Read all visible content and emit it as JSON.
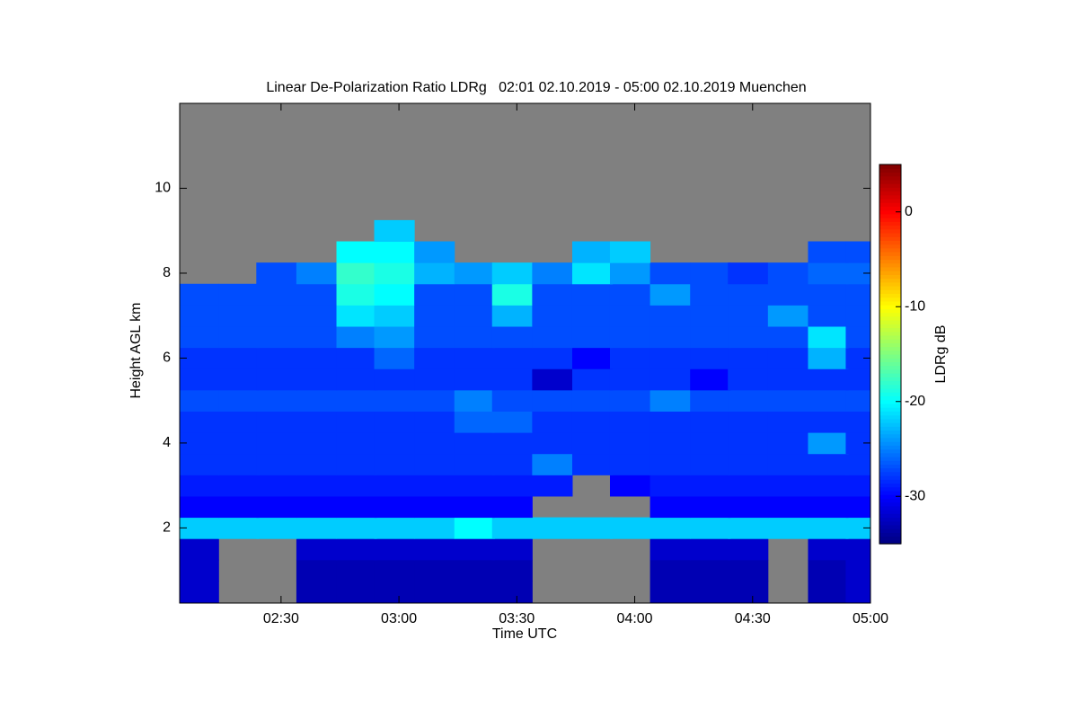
{
  "chart_data": {
    "type": "heatmap",
    "title": "Linear De-Polarization Ratio LDRg   02:01 02.10.2019 - 05:00 02.10.2019 Muenchen",
    "x_label": "Time UTC",
    "y_label": "Height AGL km",
    "colorbar_label": "LDRg dB",
    "xlim": [
      2.07,
      5.0
    ],
    "xticks": [
      {
        "value": 2.5,
        "label": "02:30"
      },
      {
        "value": 3,
        "label": "03:00"
      },
      {
        "value": 3.5,
        "label": "03:30"
      },
      {
        "value": 4,
        "label": "04:00"
      },
      {
        "value": 4.5,
        "label": "04:30"
      },
      {
        "value": 5,
        "label": "05:00"
      }
    ],
    "ylim": [
      0.23,
      12
    ],
    "yticks": [
      2,
      4,
      6,
      8,
      10
    ],
    "zlim": [
      -35,
      5
    ],
    "zticks": [
      0,
      -10,
      -20,
      -30
    ],
    "colormap": "jet",
    "missing_color": "#808080",
    "x": [
      2.15,
      2.32,
      2.48,
      2.65,
      2.82,
      2.98,
      3.15,
      3.32,
      3.48,
      3.65,
      3.82,
      3.98,
      4.15,
      4.32,
      4.48,
      4.65,
      4.82,
      4.98
    ],
    "y": [
      0.5,
      1.0,
      1.5,
      2.0,
      2.5,
      3.0,
      3.5,
      4.0,
      4.5,
      5.0,
      5.5,
      6.0,
      6.5,
      7.0,
      7.5,
      8.0,
      8.5,
      9.0
    ],
    "z": [
      [
        -32,
        null,
        null,
        -33,
        -33,
        -33,
        -33,
        -33,
        -33,
        null,
        null,
        null,
        -33,
        -33,
        -33,
        null,
        -33,
        -32
      ],
      [
        -32,
        null,
        null,
        -33,
        -33,
        -33,
        -33,
        -33,
        -33,
        null,
        null,
        null,
        -33,
        -33,
        -33,
        null,
        -33,
        -32
      ],
      [
        -32,
        null,
        null,
        -32,
        -32,
        -32,
        -32,
        -32,
        -32,
        null,
        null,
        null,
        -32,
        -32,
        -32,
        null,
        -32,
        -32
      ],
      [
        -22,
        -22,
        -22,
        -22,
        -22,
        -22,
        -22,
        -20,
        -22,
        -22,
        -22,
        -22,
        -22,
        -22,
        -22,
        -22,
        -22,
        -22
      ],
      [
        -30,
        -30,
        -30,
        -30,
        -30,
        -30,
        -30,
        -30,
        -30,
        null,
        null,
        null,
        -30,
        -30,
        -30,
        -30,
        -30,
        -30
      ],
      [
        -29,
        -29,
        -29,
        -29,
        -29,
        -29,
        -29,
        -29,
        -29,
        -29,
        null,
        -30,
        -29,
        -29,
        -29,
        -29,
        -29,
        -29
      ],
      [
        -28,
        -28,
        -28,
        -28,
        -28,
        -28,
        -28,
        -28,
        -28,
        -25,
        -28,
        -28,
        -28,
        -28,
        -28,
        -28,
        -28,
        -28
      ],
      [
        -28,
        -28,
        -28,
        -28,
        -28,
        -28,
        -28,
        -28,
        -28,
        -28,
        -28,
        -28,
        -28,
        -28,
        -28,
        -28,
        -24,
        -28
      ],
      [
        -28,
        -28,
        -28,
        -28,
        -28,
        -28,
        -28,
        -26,
        -26,
        -28,
        -28,
        -28,
        -28,
        -28,
        -28,
        -28,
        -28,
        -28
      ],
      [
        -27,
        -27,
        -27,
        -27,
        -27,
        -27,
        -27,
        -25,
        -27,
        -27,
        -27,
        -27,
        -25,
        -27,
        -27,
        -27,
        -27,
        -27
      ],
      [
        -28,
        -28,
        -28,
        -28,
        -28,
        -28,
        -28,
        -28,
        -28,
        -32,
        -28,
        -28,
        -28,
        -30,
        -28,
        -28,
        -28,
        -28
      ],
      [
        -28,
        -28,
        -28,
        -28,
        -28,
        -26,
        -28,
        -28,
        -28,
        -28,
        -30,
        -28,
        -28,
        -28,
        -28,
        -28,
        -23,
        -28
      ],
      [
        -27,
        -27,
        -27,
        -27,
        -25,
        -24,
        -27,
        -27,
        -27,
        -27,
        -27,
        -27,
        -27,
        -27,
        -27,
        -27,
        -21,
        -27
      ],
      [
        -27,
        -27,
        -27,
        -27,
        -21,
        -22,
        -27,
        -27,
        -23,
        -27,
        -27,
        -27,
        -27,
        -27,
        -27,
        -24,
        -27,
        -27
      ],
      [
        -27,
        -27,
        -27,
        -27,
        -19,
        -20,
        -27,
        -27,
        -19,
        -27,
        -27,
        -27,
        -24,
        -27,
        -27,
        -27,
        -27,
        -27
      ],
      [
        null,
        null,
        -27,
        -25,
        -18,
        -19,
        -23,
        -24,
        -22,
        -25,
        -21,
        -24,
        -27,
        -27,
        -28,
        -27,
        -26,
        -26
      ],
      [
        null,
        null,
        null,
        null,
        -20,
        -20,
        -24,
        null,
        null,
        null,
        -23,
        -22,
        null,
        null,
        null,
        null,
        -27,
        -27
      ],
      [
        null,
        null,
        null,
        null,
        null,
        -22,
        null,
        null,
        null,
        null,
        null,
        null,
        null,
        null,
        null,
        null,
        null,
        null
      ]
    ]
  }
}
